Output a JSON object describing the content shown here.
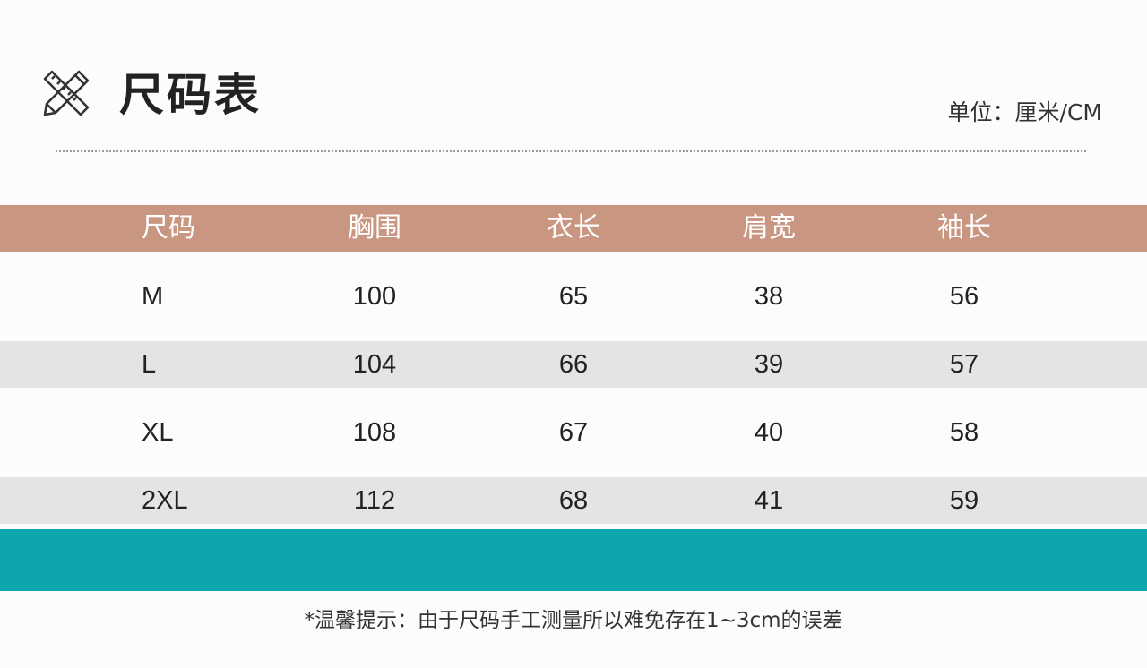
{
  "page": {
    "title": "尺码表",
    "unit": "单位：厘米/CM",
    "icon": "ruler-pencil-icon",
    "note": "*温馨提示：由于尺码手工测量所以难免存在1~3cm的误差"
  },
  "table": {
    "headers": [
      "尺码",
      "胸围",
      "衣长",
      "肩宽",
      "袖长"
    ],
    "rows": [
      [
        "M",
        "100",
        "65",
        "38",
        "56"
      ],
      [
        "L",
        "104",
        "66",
        "39",
        "57"
      ],
      [
        "XL",
        "108",
        "67",
        "40",
        "58"
      ],
      [
        "2XL",
        "112",
        "68",
        "41",
        "59"
      ]
    ]
  },
  "colors": {
    "header_bg": "#c99682",
    "row_shade": "#e4e3e6",
    "accent_bar": "#0da5ae",
    "background": "#fdfcfc"
  }
}
